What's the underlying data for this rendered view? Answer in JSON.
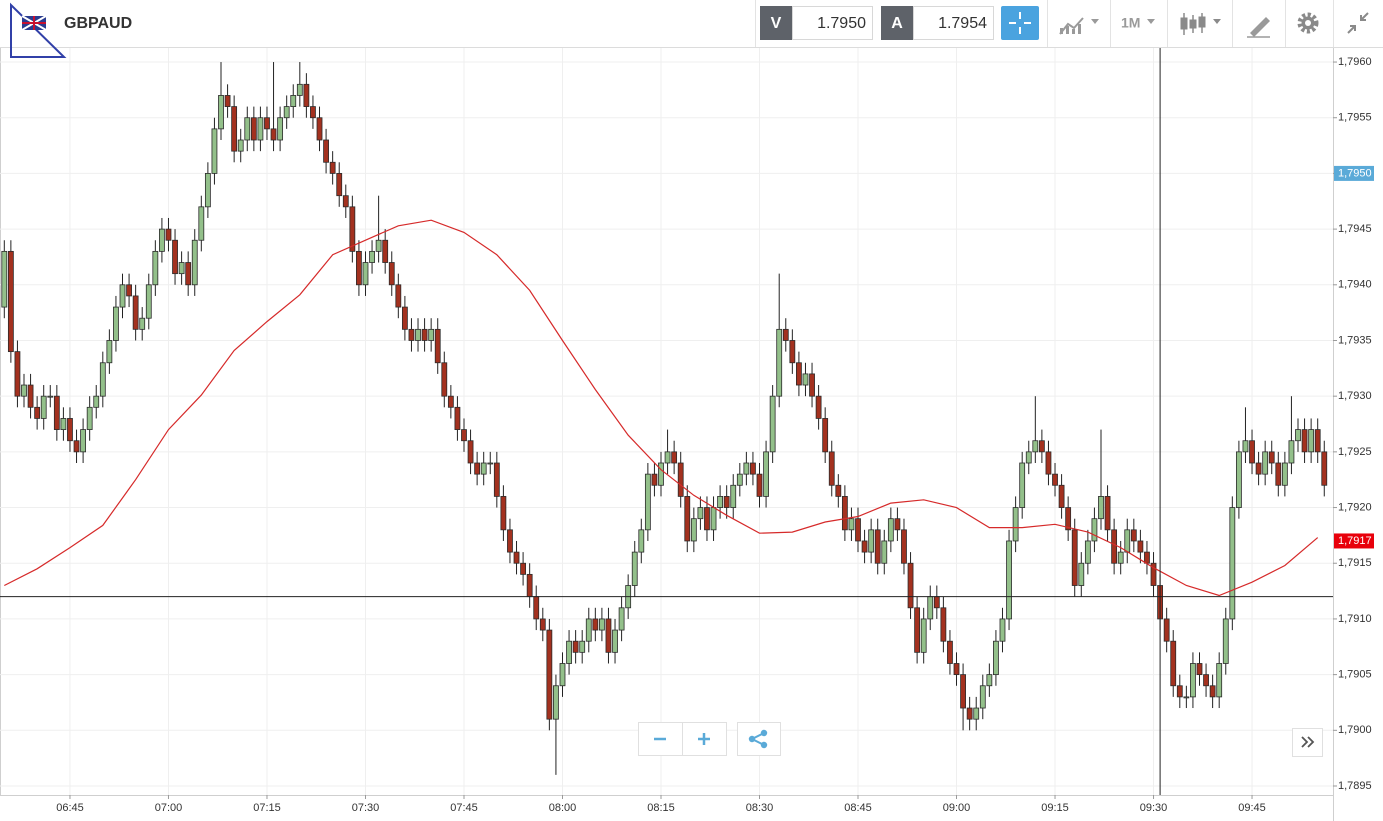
{
  "toolbar": {
    "symbol": "GBPAUD",
    "bid_label": "V",
    "bid": "1.7950",
    "ask_label": "A",
    "ask": "1.7954",
    "timeframe": "1M"
  },
  "chart_data": {
    "type": "candlestick",
    "x": [
      "06:35",
      "06:36",
      "06:37",
      "06:38",
      "06:39",
      "06:40",
      "06:41",
      "06:42",
      "06:43",
      "06:44",
      "06:45",
      "06:46",
      "06:47",
      "06:48",
      "06:49",
      "06:50",
      "06:51",
      "06:52",
      "06:53",
      "06:54",
      "06:55",
      "06:56",
      "06:57",
      "06:58",
      "06:59",
      "07:00",
      "07:01",
      "07:02",
      "07:03",
      "07:04",
      "07:05",
      "07:06",
      "07:07",
      "07:08",
      "07:09",
      "07:10",
      "07:11",
      "07:12",
      "07:13",
      "07:14",
      "07:15",
      "07:16",
      "07:17",
      "07:18",
      "07:19",
      "07:20",
      "07:21",
      "07:22",
      "07:23",
      "07:24",
      "07:25",
      "07:26",
      "07:27",
      "07:28",
      "07:29",
      "07:30",
      "07:31",
      "07:32",
      "07:33",
      "07:34",
      "07:35",
      "07:36",
      "07:37",
      "07:38",
      "07:39",
      "07:40",
      "07:41",
      "07:42",
      "07:43",
      "07:44",
      "07:45",
      "07:46",
      "07:47",
      "07:48",
      "07:49",
      "07:50",
      "07:51",
      "07:52",
      "07:53",
      "07:54",
      "07:55",
      "07:56",
      "07:57",
      "07:58",
      "07:59",
      "08:00",
      "08:01",
      "08:02",
      "08:03",
      "08:04",
      "08:05",
      "08:06",
      "08:07",
      "08:08",
      "08:09",
      "08:10",
      "08:11",
      "08:12",
      "08:13",
      "08:14",
      "08:15",
      "08:16",
      "08:17",
      "08:18",
      "08:19",
      "08:20",
      "08:21",
      "08:22",
      "08:23",
      "08:24",
      "08:25",
      "08:26",
      "08:27",
      "08:28",
      "08:29",
      "08:30",
      "08:31",
      "08:32",
      "08:33",
      "08:34",
      "08:35",
      "08:36",
      "08:37",
      "08:38",
      "08:39",
      "08:40",
      "08:41",
      "08:42",
      "08:43",
      "08:44",
      "08:45",
      "08:46",
      "08:47",
      "08:48",
      "08:49",
      "08:50",
      "08:51",
      "08:52",
      "08:53",
      "08:54",
      "08:55",
      "08:56",
      "08:57",
      "08:58",
      "08:59",
      "09:00",
      "09:01",
      "09:02",
      "09:03",
      "09:04",
      "09:05",
      "09:06",
      "09:07",
      "09:08",
      "09:09",
      "09:10",
      "09:11",
      "09:12",
      "09:13",
      "09:14",
      "09:15",
      "09:16",
      "09:17",
      "09:18",
      "09:19",
      "09:20",
      "09:21",
      "09:22",
      "09:23",
      "09:24",
      "09:25",
      "09:26",
      "09:27",
      "09:28",
      "09:29",
      "09:30",
      "09:31",
      "09:32",
      "09:33",
      "09:34",
      "09:35",
      "09:36",
      "09:37",
      "09:38",
      "09:39",
      "09:40",
      "09:41",
      "09:42",
      "09:43",
      "09:44",
      "09:45",
      "09:46",
      "09:47",
      "09:48",
      "09:49",
      "09:50",
      "09:51",
      "09:52",
      "09:53",
      "09:54",
      "09:55",
      "09:56"
    ],
    "open": [
      1.7938,
      1.7943,
      1.7934,
      1.793,
      1.7931,
      1.7929,
      1.7928,
      1.793,
      1.793,
      1.7927,
      1.7928,
      1.7926,
      1.7925,
      1.7927,
      1.7929,
      1.793,
      1.7933,
      1.7935,
      1.7938,
      1.794,
      1.7939,
      1.7936,
      1.7937,
      1.794,
      1.7943,
      1.7945,
      1.7944,
      1.7941,
      1.7942,
      1.794,
      1.7944,
      1.7947,
      1.795,
      1.7954,
      1.7957,
      1.7956,
      1.7952,
      1.7953,
      1.7955,
      1.7953,
      1.7955,
      1.7954,
      1.7953,
      1.7955,
      1.7956,
      1.7957,
      1.7958,
      1.7956,
      1.7955,
      1.7953,
      1.7951,
      1.795,
      1.7948,
      1.7947,
      1.7943,
      1.794,
      1.7942,
      1.7943,
      1.7944,
      1.7942,
      1.794,
      1.7938,
      1.7936,
      1.7935,
      1.7936,
      1.7935,
      1.7936,
      1.7933,
      1.793,
      1.7929,
      1.7927,
      1.7926,
      1.7924,
      1.7923,
      1.7924,
      1.7924,
      1.7921,
      1.7918,
      1.7916,
      1.7915,
      1.7914,
      1.7912,
      1.791,
      1.7909,
      1.7901,
      1.7904,
      1.7906,
      1.7908,
      1.7907,
      1.7908,
      1.791,
      1.7909,
      1.791,
      1.7907,
      1.7909,
      1.7911,
      1.7913,
      1.7916,
      1.7918,
      1.7923,
      1.7922,
      1.7924,
      1.7925,
      1.7924,
      1.7921,
      1.7917,
      1.7919,
      1.792,
      1.7918,
      1.792,
      1.7921,
      1.792,
      1.7922,
      1.7923,
      1.7924,
      1.7923,
      1.7921,
      1.7925,
      1.793,
      1.7936,
      1.7935,
      1.7933,
      1.7931,
      1.7932,
      1.793,
      1.7928,
      1.7925,
      1.7922,
      1.7921,
      1.7918,
      1.7919,
      1.7917,
      1.7916,
      1.7918,
      1.7915,
      1.7917,
      1.7919,
      1.7918,
      1.7915,
      1.7911,
      1.7907,
      1.791,
      1.7912,
      1.7911,
      1.7908,
      1.7906,
      1.7905,
      1.7902,
      1.7901,
      1.7902,
      1.7904,
      1.7905,
      1.7908,
      1.791,
      1.7917,
      1.792,
      1.7924,
      1.7925,
      1.7926,
      1.7925,
      1.7923,
      1.7922,
      1.792,
      1.7918,
      1.7913,
      1.7915,
      1.7917,
      1.7919,
      1.7921,
      1.7918,
      1.7915,
      1.7916,
      1.7918,
      1.7917,
      1.7916,
      1.7915,
      1.7913,
      1.791,
      1.7908,
      1.7904,
      1.7903,
      1.7903,
      1.7906,
      1.7905,
      1.7904,
      1.7903,
      1.7906,
      1.791,
      1.792,
      1.7925,
      1.7926,
      1.7924,
      1.7923,
      1.7925,
      1.7924,
      1.7922,
      1.7924,
      1.7926,
      1.7927,
      1.7925,
      1.7927,
      1.7925
    ],
    "high": [
      1.7944,
      1.7944,
      1.7935,
      1.7932,
      1.7932,
      1.793,
      1.7931,
      1.7931,
      1.7931,
      1.7929,
      1.7929,
      1.7927,
      1.7928,
      1.793,
      1.7931,
      1.7934,
      1.7936,
      1.7939,
      1.7941,
      1.7941,
      1.794,
      1.7938,
      1.7941,
      1.7944,
      1.7946,
      1.7946,
      1.7945,
      1.7943,
      1.7943,
      1.7945,
      1.7948,
      1.7951,
      1.7955,
      1.796,
      1.7958,
      1.7957,
      1.7954,
      1.7956,
      1.7956,
      1.7956,
      1.7956,
      1.796,
      1.7956,
      1.7957,
      1.7958,
      1.796,
      1.7959,
      1.7957,
      1.7956,
      1.7954,
      1.7952,
      1.7951,
      1.7949,
      1.7948,
      1.7944,
      1.7943,
      1.7944,
      1.7948,
      1.7945,
      1.7943,
      1.7941,
      1.7939,
      1.7937,
      1.7937,
      1.7937,
      1.7937,
      1.7937,
      1.7934,
      1.7931,
      1.793,
      1.7928,
      1.7927,
      1.7925,
      1.7925,
      1.7925,
      1.7925,
      1.7922,
      1.7919,
      1.7917,
      1.7916,
      1.7915,
      1.7913,
      1.7911,
      1.791,
      1.7905,
      1.7907,
      1.7909,
      1.7909,
      1.7909,
      1.7911,
      1.7911,
      1.7911,
      1.7911,
      1.791,
      1.7912,
      1.7914,
      1.7917,
      1.7919,
      1.7924,
      1.7924,
      1.7925,
      1.7927,
      1.7926,
      1.7925,
      1.7922,
      1.792,
      1.7921,
      1.7921,
      1.7921,
      1.7922,
      1.7922,
      1.7923,
      1.7924,
      1.7925,
      1.7925,
      1.7924,
      1.7926,
      1.7931,
      1.7941,
      1.7937,
      1.7936,
      1.7934,
      1.7933,
      1.7933,
      1.7931,
      1.7929,
      1.7926,
      1.7923,
      1.7922,
      1.792,
      1.792,
      1.7918,
      1.7919,
      1.7919,
      1.7918,
      1.792,
      1.792,
      1.7919,
      1.7916,
      1.7912,
      1.7911,
      1.7913,
      1.7913,
      1.7912,
      1.7909,
      1.7907,
      1.7906,
      1.7903,
      1.7903,
      1.7905,
      1.7906,
      1.7909,
      1.7911,
      1.7918,
      1.7921,
      1.7925,
      1.7926,
      1.793,
      1.7927,
      1.7926,
      1.7924,
      1.7923,
      1.7921,
      1.7919,
      1.7916,
      1.7918,
      1.792,
      1.7927,
      1.7922,
      1.7919,
      1.7917,
      1.7919,
      1.7919,
      1.7918,
      1.7917,
      1.7916,
      1.7914,
      1.7911,
      1.7909,
      1.7905,
      1.7904,
      1.7907,
      1.7907,
      1.7906,
      1.7905,
      1.7907,
      1.7911,
      1.7921,
      1.7926,
      1.7929,
      1.7927,
      1.7925,
      1.7926,
      1.7926,
      1.7925,
      1.7925,
      1.793,
      1.7928,
      1.7928,
      1.7928,
      1.7928,
      1.7926
    ],
    "low": [
      1.7937,
      1.7933,
      1.7929,
      1.7929,
      1.7928,
      1.7927,
      1.7927,
      1.7929,
      1.7926,
      1.7926,
      1.7925,
      1.7924,
      1.7924,
      1.7926,
      1.7928,
      1.7929,
      1.7932,
      1.7934,
      1.7937,
      1.7938,
      1.7935,
      1.7935,
      1.7936,
      1.7939,
      1.7942,
      1.7943,
      1.794,
      1.794,
      1.7939,
      1.7939,
      1.7943,
      1.7946,
      1.7949,
      1.7953,
      1.7955,
      1.7951,
      1.7951,
      1.7952,
      1.7952,
      1.7952,
      1.7953,
      1.7952,
      1.7952,
      1.7954,
      1.7955,
      1.7956,
      1.7955,
      1.7954,
      1.7952,
      1.795,
      1.7949,
      1.7947,
      1.7946,
      1.7942,
      1.7939,
      1.7939,
      1.7941,
      1.7942,
      1.7941,
      1.7939,
      1.7937,
      1.7935,
      1.7934,
      1.7934,
      1.7934,
      1.7934,
      1.7932,
      1.7929,
      1.7928,
      1.7926,
      1.7925,
      1.7923,
      1.7922,
      1.7922,
      1.7923,
      1.792,
      1.7917,
      1.7915,
      1.7914,
      1.7913,
      1.7911,
      1.7909,
      1.7908,
      1.79,
      1.7896,
      1.7903,
      1.7905,
      1.7906,
      1.7906,
      1.7907,
      1.7908,
      1.7908,
      1.7906,
      1.7906,
      1.7908,
      1.791,
      1.7912,
      1.7915,
      1.7917,
      1.7921,
      1.7921,
      1.7923,
      1.7923,
      1.792,
      1.7916,
      1.7916,
      1.7918,
      1.7917,
      1.7917,
      1.7919,
      1.7919,
      1.7919,
      1.7921,
      1.7922,
      1.7922,
      1.792,
      1.792,
      1.7924,
      1.7929,
      1.7934,
      1.7932,
      1.793,
      1.793,
      1.7929,
      1.7927,
      1.7924,
      1.7921,
      1.792,
      1.7917,
      1.7917,
      1.7916,
      1.7915,
      1.7915,
      1.7914,
      1.7914,
      1.7916,
      1.7917,
      1.7914,
      1.791,
      1.7906,
      1.7906,
      1.7909,
      1.791,
      1.7907,
      1.7905,
      1.7904,
      1.79,
      1.79,
      1.79,
      1.7901,
      1.7903,
      1.7904,
      1.7907,
      1.7909,
      1.7916,
      1.7919,
      1.7923,
      1.7924,
      1.7924,
      1.7922,
      1.7921,
      1.7919,
      1.7917,
      1.7912,
      1.7912,
      1.7914,
      1.7916,
      1.7918,
      1.7917,
      1.7914,
      1.7914,
      1.7915,
      1.7916,
      1.7915,
      1.7914,
      1.7912,
      1.7909,
      1.7907,
      1.7903,
      1.7902,
      1.7902,
      1.7902,
      1.7904,
      1.7903,
      1.7902,
      1.7902,
      1.7905,
      1.7909,
      1.7919,
      1.7924,
      1.7923,
      1.7922,
      1.7922,
      1.7923,
      1.7921,
      1.7921,
      1.7923,
      1.7925,
      1.7924,
      1.7924,
      1.7924,
      1.7921
    ],
    "close": [
      1.7943,
      1.7934,
      1.793,
      1.7931,
      1.7929,
      1.7928,
      1.793,
      1.793,
      1.7927,
      1.7928,
      1.7926,
      1.7925,
      1.7927,
      1.7929,
      1.793,
      1.7933,
      1.7935,
      1.7938,
      1.794,
      1.7939,
      1.7936,
      1.7937,
      1.794,
      1.7943,
      1.7945,
      1.7944,
      1.7941,
      1.7942,
      1.794,
      1.7944,
      1.7947,
      1.795,
      1.7954,
      1.7957,
      1.7956,
      1.7952,
      1.7953,
      1.7955,
      1.7953,
      1.7955,
      1.7954,
      1.7953,
      1.7955,
      1.7956,
      1.7957,
      1.7958,
      1.7956,
      1.7955,
      1.7953,
      1.7951,
      1.795,
      1.7948,
      1.7947,
      1.7943,
      1.794,
      1.7942,
      1.7943,
      1.7944,
      1.7942,
      1.794,
      1.7938,
      1.7936,
      1.7935,
      1.7936,
      1.7935,
      1.7936,
      1.7933,
      1.793,
      1.7929,
      1.7927,
      1.7926,
      1.7924,
      1.7923,
      1.7924,
      1.7924,
      1.7921,
      1.7918,
      1.7916,
      1.7915,
      1.7914,
      1.7912,
      1.791,
      1.7909,
      1.7901,
      1.7904,
      1.7906,
      1.7908,
      1.7907,
      1.7908,
      1.791,
      1.7909,
      1.791,
      1.7907,
      1.7909,
      1.7911,
      1.7913,
      1.7916,
      1.7918,
      1.7923,
      1.7922,
      1.7924,
      1.7925,
      1.7924,
      1.7921,
      1.7917,
      1.7919,
      1.792,
      1.7918,
      1.792,
      1.7921,
      1.792,
      1.7922,
      1.7923,
      1.7924,
      1.7923,
      1.7921,
      1.7925,
      1.793,
      1.7936,
      1.7935,
      1.7933,
      1.7931,
      1.7932,
      1.793,
      1.7928,
      1.7925,
      1.7922,
      1.7921,
      1.7918,
      1.7919,
      1.7917,
      1.7916,
      1.7918,
      1.7915,
      1.7917,
      1.7919,
      1.7918,
      1.7915,
      1.7911,
      1.7907,
      1.791,
      1.7912,
      1.7911,
      1.7908,
      1.7906,
      1.7905,
      1.7902,
      1.7901,
      1.7902,
      1.7904,
      1.7905,
      1.7908,
      1.791,
      1.7917,
      1.792,
      1.7924,
      1.7925,
      1.7926,
      1.7925,
      1.7923,
      1.7922,
      1.792,
      1.7918,
      1.7913,
      1.7915,
      1.7917,
      1.7919,
      1.7921,
      1.7918,
      1.7915,
      1.7916,
      1.7918,
      1.7917,
      1.7916,
      1.7915,
      1.7913,
      1.791,
      1.7908,
      1.7904,
      1.7903,
      1.7903,
      1.7906,
      1.7905,
      1.7904,
      1.7903,
      1.7906,
      1.791,
      1.792,
      1.7925,
      1.7926,
      1.7924,
      1.7923,
      1.7925,
      1.7924,
      1.7922,
      1.7924,
      1.7926,
      1.7927,
      1.7925,
      1.7927,
      1.7925,
      1.7922
    ],
    "up_color": "#93c08a",
    "down_color": "#a3311f",
    "moving_average": {
      "color": "#d62a2a",
      "x": [
        "06:35",
        "06:40",
        "06:45",
        "06:50",
        "06:55",
        "07:00",
        "07:05",
        "07:10",
        "07:15",
        "07:20",
        "07:25",
        "07:30",
        "07:35",
        "07:40",
        "07:45",
        "07:50",
        "07:55",
        "08:00",
        "08:05",
        "08:10",
        "08:15",
        "08:20",
        "08:25",
        "08:30",
        "08:35",
        "08:40",
        "08:45",
        "08:50",
        "08:55",
        "09:00",
        "09:05",
        "09:10",
        "09:15",
        "09:20",
        "09:25",
        "09:30",
        "09:35",
        "09:40",
        "09:45",
        "09:50",
        "09:55"
      ],
      "values": [
        1.7913,
        1.79145,
        1.79164,
        1.79184,
        1.79225,
        1.7927,
        1.79301,
        1.79341,
        1.79367,
        1.79391,
        1.79427,
        1.7944,
        1.79453,
        1.79458,
        1.79447,
        1.79427,
        1.79395,
        1.7935,
        1.79306,
        1.79265,
        1.79234,
        1.79211,
        1.79193,
        1.79177,
        1.79178,
        1.79187,
        1.79192,
        1.79204,
        1.79207,
        1.792,
        1.79182,
        1.79182,
        1.79185,
        1.79178,
        1.79164,
        1.79146,
        1.7913,
        1.79121,
        1.79133,
        1.79148,
        1.79173
      ]
    },
    "ylim": [
      1.7895,
      1.7961
    ],
    "yticks": [
      {
        "value": 1.7895,
        "label": "1,7895"
      },
      {
        "value": 1.79,
        "label": "1,7900"
      },
      {
        "value": 1.7905,
        "label": "1,7905"
      },
      {
        "value": 1.791,
        "label": "1,7910"
      },
      {
        "value": 1.7915,
        "label": "1,7915"
      },
      {
        "value": 1.792,
        "label": "1,7920"
      },
      {
        "value": 1.7925,
        "label": "1,7925"
      },
      {
        "value": 1.793,
        "label": "1,7930"
      },
      {
        "value": 1.7935,
        "label": "1,7935"
      },
      {
        "value": 1.794,
        "label": "1,7940"
      },
      {
        "value": 1.7945,
        "label": "1,7945"
      },
      {
        "value": 1.795,
        "label": "1,7950"
      },
      {
        "value": 1.7955,
        "label": "1,7955"
      },
      {
        "value": 1.796,
        "label": "1,7960"
      }
    ],
    "xticks": [
      "06:45",
      "07:00",
      "07:15",
      "07:30",
      "07:45",
      "08:00",
      "08:15",
      "08:30",
      "08:45",
      "09:00",
      "09:15",
      "09:30",
      "09:45"
    ],
    "grid": true,
    "price_tags": [
      {
        "value": 1.795,
        "label": "1,7950",
        "color": "#5aaad8"
      },
      {
        "value": 1.7917,
        "label": "1,7917",
        "color": "#e8000b"
      }
    ],
    "crosshair": {
      "x": "09:31",
      "y": 1.7912
    }
  }
}
